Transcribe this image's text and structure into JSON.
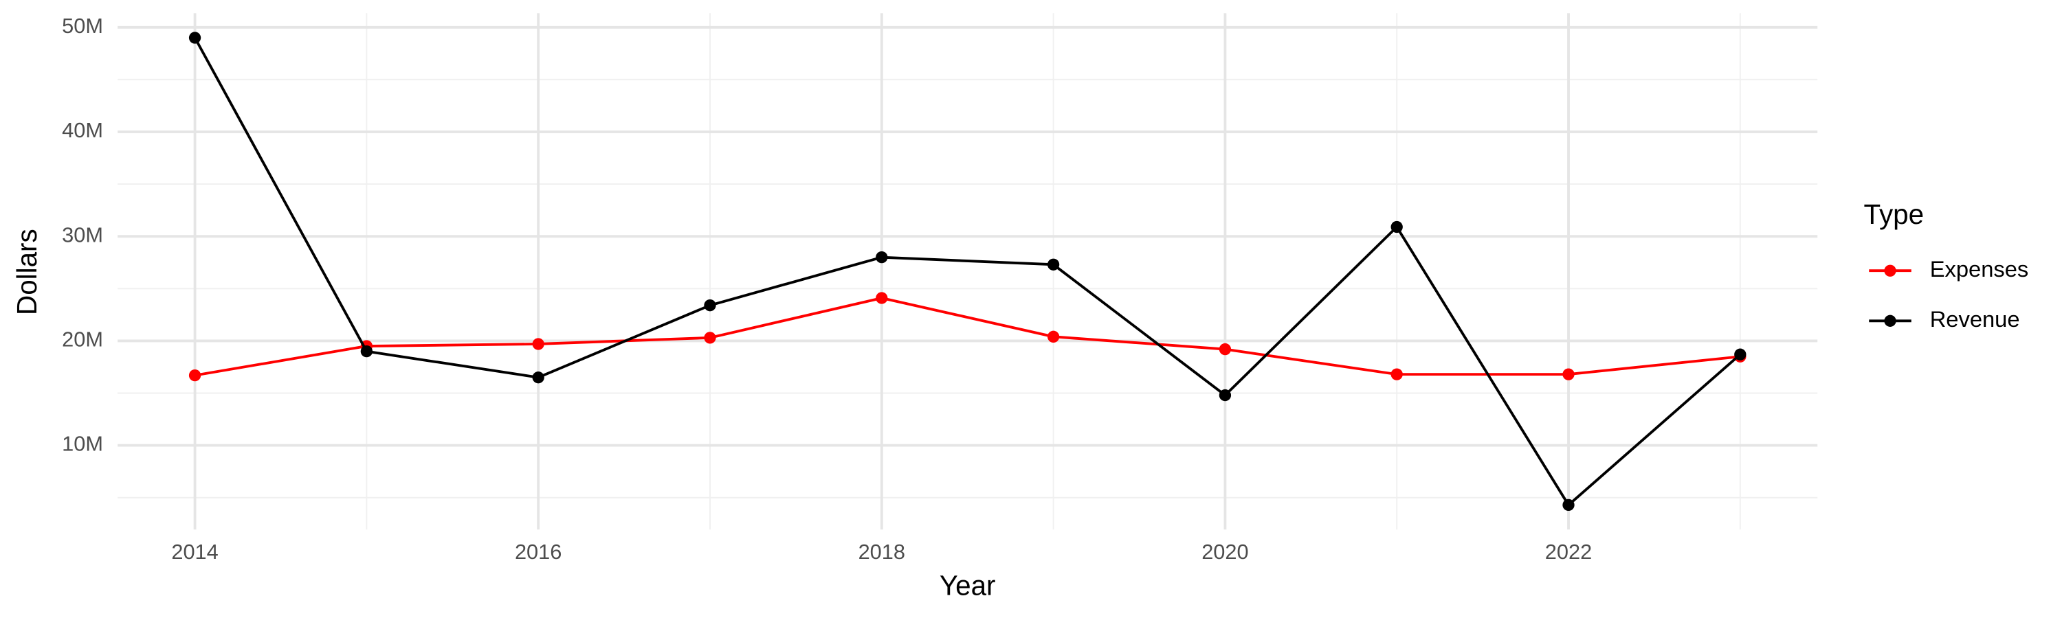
{
  "chart_data": {
    "type": "line",
    "x_label": "Year",
    "y_label": "Dollars",
    "legend_title": "Type",
    "x": [
      2014,
      2015,
      2016,
      2017,
      2018,
      2019,
      2020,
      2021,
      2022,
      2023
    ],
    "series": [
      {
        "name": "Expenses",
        "color": "#ff0000",
        "values": [
          16700000,
          19500000,
          19700000,
          20300000,
          24100000,
          20400000,
          19200000,
          16800000,
          16800000,
          18500000
        ]
      },
      {
        "name": "Revenue",
        "color": "#000000",
        "values": [
          49000000,
          19000000,
          16500000,
          23400000,
          28000000,
          27300000,
          14800000,
          30900000,
          4300000,
          18700000
        ]
      }
    ],
    "xlim": [
      2013.55,
      2023.45
    ],
    "xticks": [
      2014,
      2016,
      2018,
      2020,
      2022
    ],
    "ylim": [
      1950000,
      51350000
    ],
    "yticks": [
      {
        "value": 10000000,
        "label": "10M"
      },
      {
        "value": 20000000,
        "label": "20M"
      },
      {
        "value": 30000000,
        "label": "30M"
      },
      {
        "value": 40000000,
        "label": "40M"
      },
      {
        "value": 50000000,
        "label": "50M"
      }
    ],
    "grid": true,
    "legend_position": "right"
  }
}
